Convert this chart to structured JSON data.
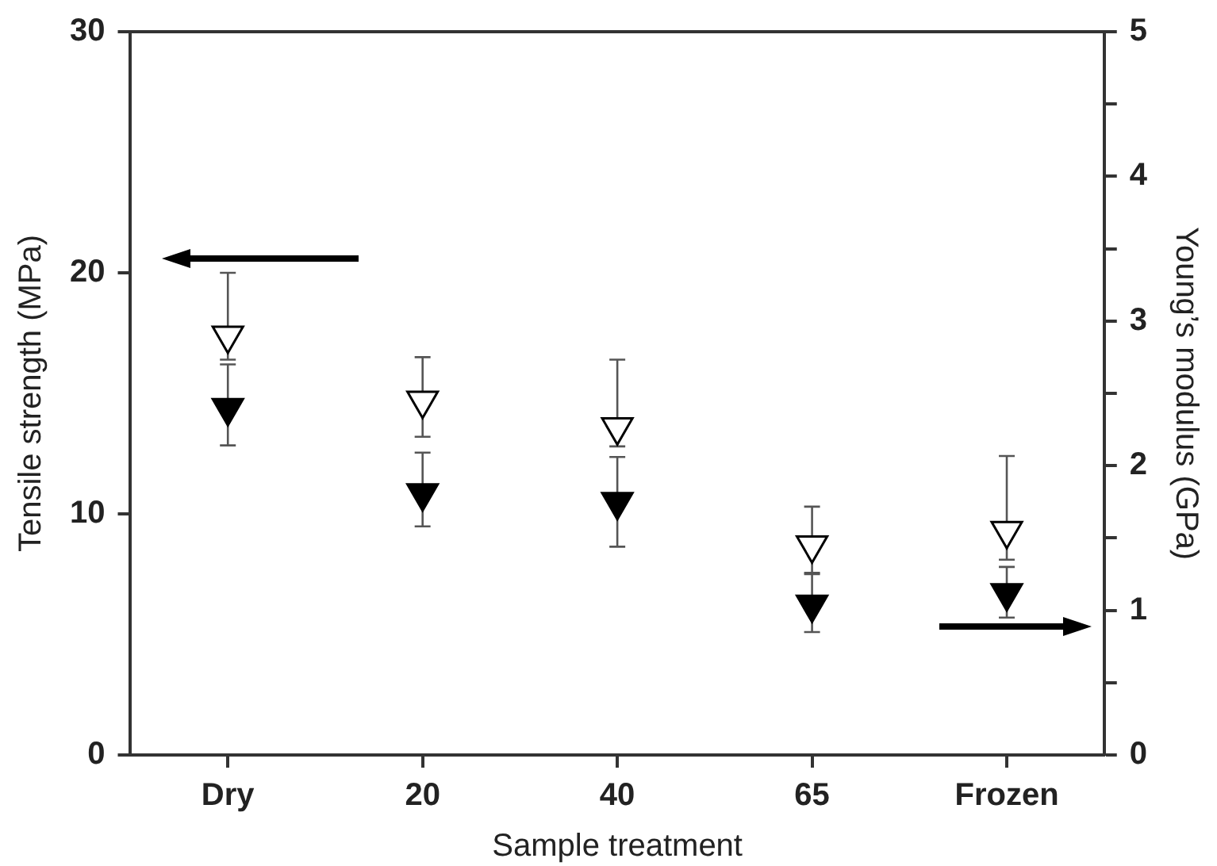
{
  "chart_data": {
    "type": "scatter",
    "xlabel": "Sample treatment",
    "ylabel": "Tensile strength (MPa)",
    "y2label": "Young’s modulus (GPa)",
    "categories": [
      "Dry",
      "20",
      "40",
      "65",
      "Frozen"
    ],
    "series": [
      {
        "color": "#ffffff",
        "values": [
          17.4,
          14.7,
          13.6,
          8.7,
          9.3
        ],
        "errors": [
          [
            16.4,
            20.0
          ],
          [
            13.2,
            16.5
          ],
          [
            12.8,
            16.4
          ],
          [
            7.5,
            10.3
          ],
          [
            8.1,
            12.4
          ]
        ]
      },
      {
        "color": "#000000",
        "axis": "y2",
        "values": [
          2.4,
          1.81,
          1.75,
          1.04,
          1.12
        ],
        "errors": [
          [
            2.14,
            2.7
          ],
          [
            1.58,
            2.09
          ],
          [
            1.44,
            2.06
          ],
          [
            0.85,
            1.26
          ],
          [
            0.95,
            1.3
          ]
        ]
      }
    ],
    "ylim": [
      0,
      30
    ],
    "yticks": [
      0,
      10,
      20,
      30
    ],
    "y2lim": [
      0,
      5
    ],
    "y2ticks": [
      0,
      {
        "value": 0.5,
        "label": null
      },
      1,
      {
        "value": 1.5,
        "label": null
      },
      2,
      {
        "value": 2.5,
        "label": null
      },
      3,
      {
        "value": 3.5,
        "label": null
      },
      4,
      {
        "value": 4.5,
        "label": null
      },
      5
    ],
    "marker": "triangle",
    "grid": false,
    "legend": false
  }
}
